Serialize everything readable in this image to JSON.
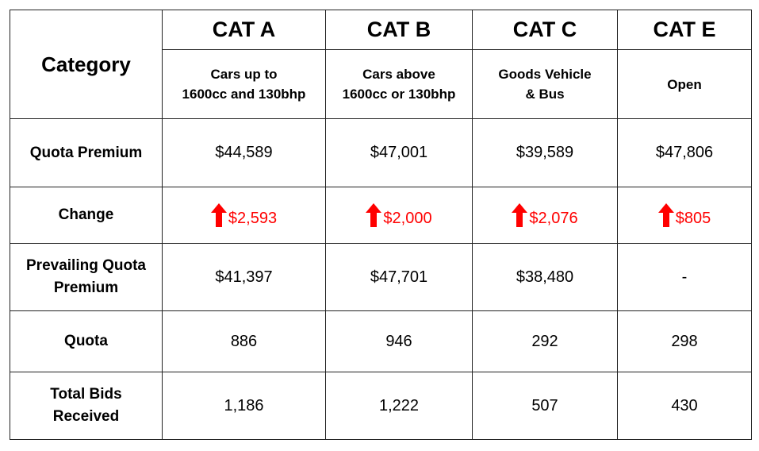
{
  "header": {
    "corner_label": "Category",
    "categories": [
      {
        "name": "CAT A",
        "desc_line1": "Cars up to",
        "desc_line2": "1600cc and 130bhp"
      },
      {
        "name": "CAT B",
        "desc_line1": "Cars above",
        "desc_line2": "1600cc or 130bhp"
      },
      {
        "name": "CAT C",
        "desc_line1": "Goods Vehicle",
        "desc_line2": "& Bus"
      },
      {
        "name": "CAT E",
        "desc_line1": "Open",
        "desc_line2": ""
      }
    ]
  },
  "rows": {
    "quota_premium": {
      "label": "Quota Premium",
      "values": [
        "$44,589",
        "$47,001",
        "$39,589",
        "$47,806"
      ]
    },
    "change": {
      "label": "Change",
      "direction": "up",
      "arrow_icon": "up-arrow-icon",
      "color": "#ff0000",
      "values": [
        "$2,593",
        "$2,000",
        "$2,076",
        "$805"
      ]
    },
    "prevailing_quota_premium": {
      "label_line1": "Prevailing Quota",
      "label_line2": "Premium",
      "values": [
        "$41,397",
        "$47,701",
        "$38,480",
        "-"
      ]
    },
    "quota": {
      "label": "Quota",
      "values": [
        "886",
        "946",
        "292",
        "298"
      ]
    },
    "total_bids_received": {
      "label_line1": "Total Bids",
      "label_line2": "Received",
      "values": [
        "1,186",
        "1,222",
        "507",
        "430"
      ]
    }
  }
}
